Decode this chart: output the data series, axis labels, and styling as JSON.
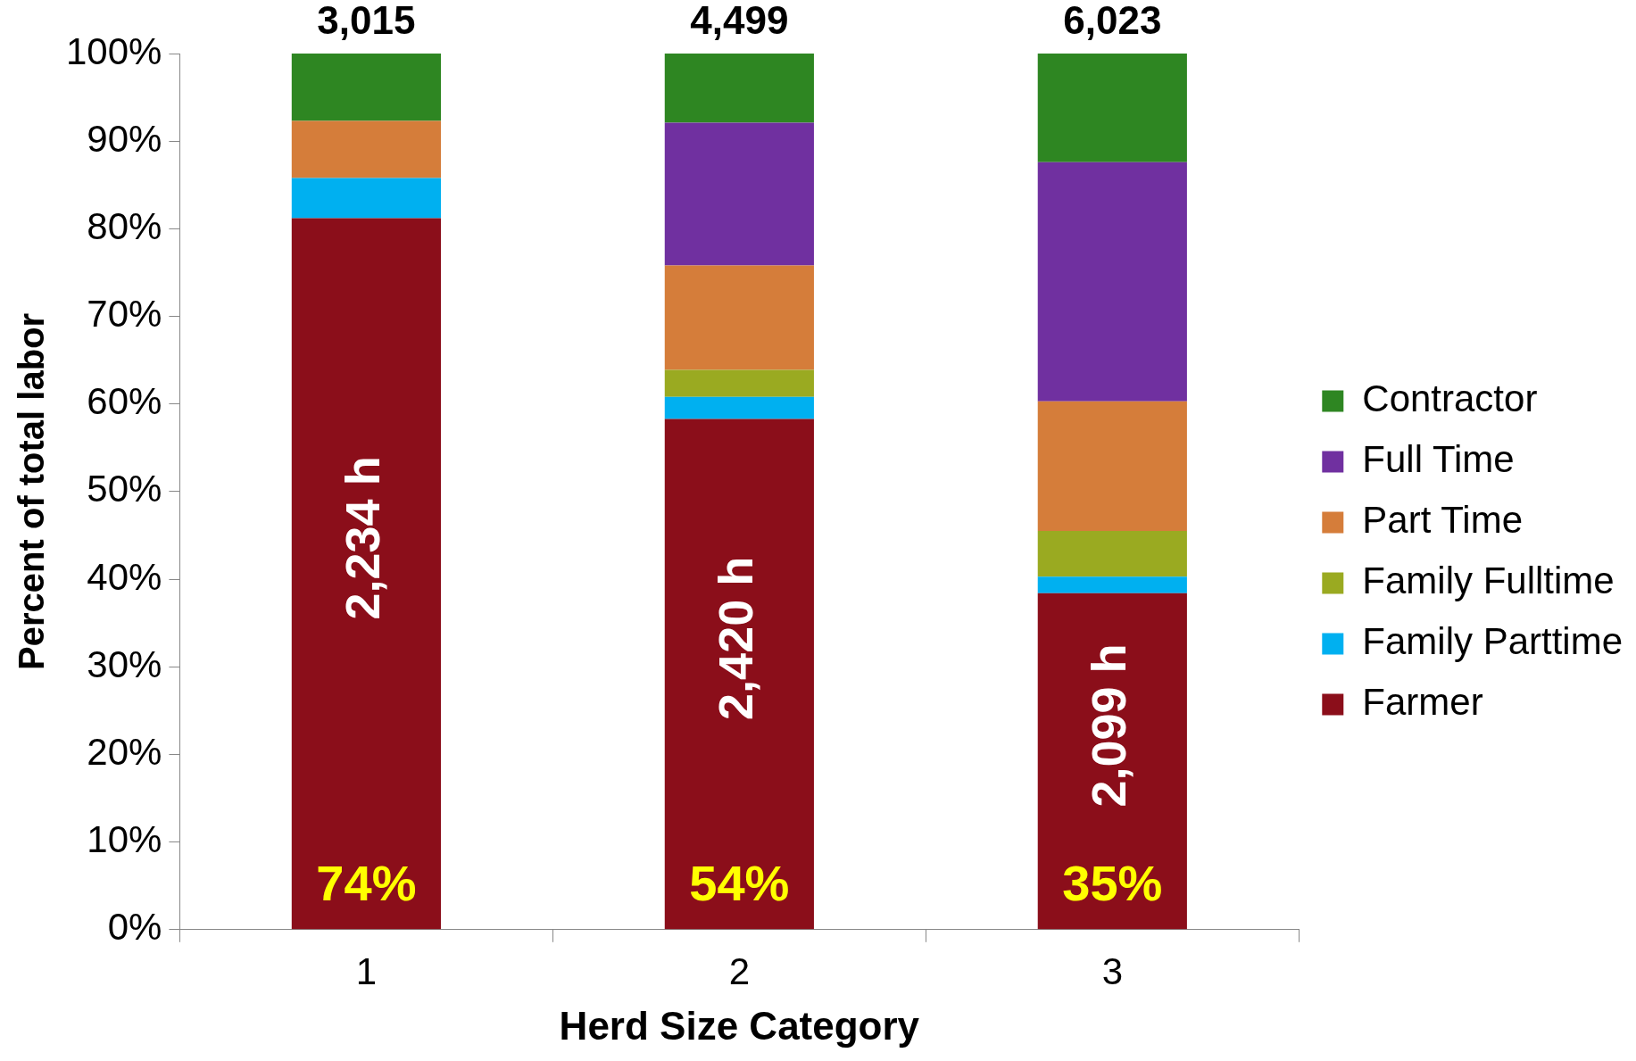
{
  "chart_data": {
    "type": "bar",
    "stacked": true,
    "xlabel": "Herd Size Category",
    "ylabel": "Percent of total labor",
    "categories": [
      "1",
      "2",
      "3"
    ],
    "series": [
      {
        "name": "Farmer",
        "color": "#8b0e1a",
        "values": [
          81.2,
          58.3,
          38.4
        ]
      },
      {
        "name": "Family Parttime",
        "color": "#00b0f0",
        "values": [
          4.6,
          2.5,
          1.9
        ]
      },
      {
        "name": "Family Fulltime",
        "color": "#9aaa21",
        "values": [
          0,
          3.1,
          5.2
        ]
      },
      {
        "name": "Part Time",
        "color": "#d57d3a",
        "values": [
          6.5,
          11.9,
          14.8
        ]
      },
      {
        "name": "Full Time",
        "color": "#7030a0",
        "values": [
          0,
          16.3,
          27.3
        ]
      },
      {
        "name": "Contractor",
        "color": "#2e8622",
        "values": [
          7.7,
          7.9,
          12.4
        ]
      }
    ],
    "annotations": [
      "3,015",
      "4,499",
      "6,023",
      "2,234 h",
      "2,420 h",
      "2,099 h",
      "74%",
      "54%",
      "35%"
    ],
    "ylim": [
      0,
      100
    ],
    "yticks": [
      {
        "value": 0,
        "label": "0%"
      },
      {
        "value": 10,
        "label": "10%"
      },
      {
        "value": 20,
        "label": "20%"
      },
      {
        "value": 30,
        "label": "30%"
      },
      {
        "value": 40,
        "label": "40%"
      },
      {
        "value": 50,
        "label": "50%"
      },
      {
        "value": 60,
        "label": "60%"
      },
      {
        "value": 70,
        "label": "70%"
      },
      {
        "value": 80,
        "label": "80%"
      },
      {
        "value": 90,
        "label": "90%"
      },
      {
        "value": 100,
        "label": "100%"
      }
    ],
    "grid": false,
    "legend": "right"
  }
}
